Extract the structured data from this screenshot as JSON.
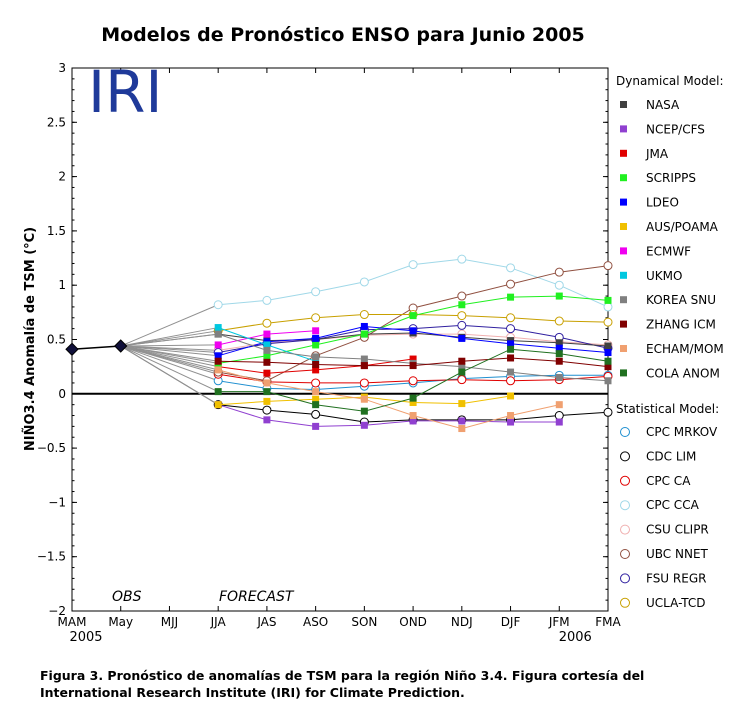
{
  "title": "Modelos de Pronóstico ENSO para Junio 2005",
  "logo_text": "IRI",
  "caption": {
    "line1": "Figura 3. Pronóstico de anomalías de TSM para la región Niño 3.4.  Figura cortesía del",
    "line2": "International Research Institute (IRI) for Climate Prediction."
  },
  "chart_data": {
    "type": "line",
    "title": "Modelos de Pronóstico ENSO para Junio 2005",
    "ylabel": "NIÑO3.4 Anomalía de TSM (°C)",
    "xlabel": "",
    "categories": [
      "MAM",
      "May",
      "MJJ",
      "JJA",
      "JAS",
      "ASO",
      "SON",
      "OND",
      "NDJ",
      "DJF",
      "JFM",
      "FMA"
    ],
    "year_labels": {
      "MAM": "2005",
      "JFM": "2006"
    },
    "ylim": [
      -2,
      3
    ],
    "yticks": [
      "3",
      "2.5",
      "2",
      "1.5",
      "1",
      "0.5",
      "0",
      "−0.5",
      "−1",
      "−1.5",
      "−2"
    ],
    "annotations": {
      "obs": "OBS",
      "forecast": "FORECAST"
    },
    "observed": [
      0.41,
      0.44
    ],
    "legend": {
      "dynamical_title": "Dynamical Model:",
      "statistical_title": "Statistical Model:",
      "placement": "right"
    },
    "dynamical_series": [
      {
        "name": "NASA",
        "color": "#404040",
        "values": [
          0.55,
          0.49,
          0.5,
          0.55,
          0.56,
          0.52,
          0.49,
          0.47,
          0.44
        ]
      },
      {
        "name": "NCEP/CFS",
        "color": "#9040d0",
        "values": [
          -0.1,
          -0.24,
          -0.3,
          -0.29,
          -0.25,
          -0.25,
          -0.26,
          -0.26,
          null
        ]
      },
      {
        "name": "JMA",
        "color": "#e00000",
        "values": [
          0.25,
          0.19,
          0.22,
          0.26,
          0.32,
          null,
          null,
          null,
          null
        ]
      },
      {
        "name": "SCRIPPS",
        "color": "#20f020",
        "values": [
          0.28,
          0.35,
          0.45,
          0.55,
          0.72,
          0.82,
          0.89,
          0.9,
          0.86
        ]
      },
      {
        "name": "LDEO",
        "color": "#0000ff",
        "values": [
          0.35,
          0.48,
          0.51,
          0.62,
          0.58,
          0.51,
          0.46,
          0.42,
          0.38
        ]
      },
      {
        "name": "AUS/POAMA",
        "color": "#f0c000",
        "values": [
          -0.1,
          -0.07,
          -0.05,
          -0.03,
          -0.08,
          -0.09,
          -0.02,
          null,
          null
        ]
      },
      {
        "name": "ECMWF",
        "color": "#f000f0",
        "values": [
          0.45,
          0.55,
          0.58,
          null,
          null,
          null,
          null,
          null,
          null
        ]
      },
      {
        "name": "UKMO",
        "color": "#00c8e0",
        "values": [
          0.61,
          0.45,
          0.3,
          null,
          null,
          null,
          null,
          null,
          null
        ]
      },
      {
        "name": "KOREA SNU",
        "color": "#808080",
        "values": [
          0.55,
          0.4,
          0.34,
          0.32,
          0.28,
          0.25,
          0.2,
          0.15,
          0.12
        ]
      },
      {
        "name": "ZHANG ICM",
        "color": "#800000",
        "values": [
          0.3,
          0.29,
          0.27,
          0.26,
          0.26,
          0.3,
          0.33,
          0.3,
          0.25
        ]
      },
      {
        "name": "ECHAM/MOM",
        "color": "#f0a070",
        "values": [
          0.22,
          0.1,
          0.02,
          -0.05,
          -0.2,
          -0.32,
          -0.2,
          -0.1,
          null
        ]
      },
      {
        "name": "COLA ANOM",
        "color": "#207020",
        "values": [
          0.02,
          0.02,
          -0.1,
          -0.16,
          -0.04,
          0.2,
          0.41,
          0.37,
          0.3
        ]
      }
    ],
    "statistical_series": [
      {
        "name": "CPC MRKOV",
        "color": "#1f8fd0",
        "values": [
          0.12,
          0.05,
          0.04,
          0.07,
          0.1,
          0.14,
          0.16,
          0.17,
          0.17
        ]
      },
      {
        "name": "CDC LIM",
        "color": "#000000",
        "values": [
          -0.1,
          -0.15,
          -0.19,
          -0.26,
          -0.24,
          -0.24,
          -0.24,
          -0.2,
          -0.17
        ]
      },
      {
        "name": "CPC CA",
        "color": "#e00000",
        "values": [
          0.18,
          0.11,
          0.1,
          0.1,
          0.12,
          0.13,
          0.12,
          0.13,
          0.16
        ]
      },
      {
        "name": "CPC CCA",
        "color": "#a0d8e8",
        "values": [
          0.82,
          0.86,
          0.94,
          1.03,
          1.19,
          1.24,
          1.16,
          1.0,
          0.8
        ]
      },
      {
        "name": "CSU CLIPR",
        "color": "#f0b0b0",
        "values": [
          0.4,
          0.47,
          0.5,
          0.54,
          0.55,
          0.55,
          0.52,
          0.48,
          0.45
        ]
      },
      {
        "name": "UBC NNET",
        "color": "#905040",
        "values": [
          0.2,
          0.12,
          0.35,
          0.52,
          0.79,
          0.9,
          1.01,
          1.12,
          1.18
        ]
      },
      {
        "name": "FSU REGR",
        "color": "#3020a0",
        "values": [
          0.38,
          0.46,
          0.5,
          0.59,
          0.6,
          0.63,
          0.6,
          0.52,
          0.42
        ]
      },
      {
        "name": "UCLA-TCD",
        "color": "#c8a000",
        "values": [
          0.58,
          0.65,
          0.7,
          0.73,
          0.73,
          0.72,
          0.7,
          0.67,
          0.66
        ]
      }
    ]
  }
}
